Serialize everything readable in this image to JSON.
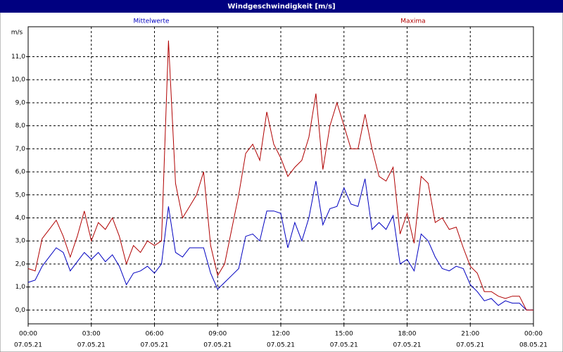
{
  "chart_data": {
    "type": "line",
    "title": "Windgeschwindigkeit [m/s]",
    "y_unit_label": "m/s",
    "x": [
      0,
      20,
      40,
      60,
      80,
      100,
      120,
      140,
      160,
      180,
      200,
      220,
      240,
      260,
      280,
      300,
      320,
      340,
      360,
      380,
      400,
      420,
      440,
      460,
      480,
      500,
      520,
      540,
      560,
      580,
      600,
      620,
      640,
      660,
      680,
      700,
      720,
      740,
      760,
      780,
      800,
      820,
      840,
      860,
      880,
      900,
      920,
      940,
      960,
      980,
      1000,
      1020,
      1040,
      1060,
      1080,
      1100,
      1120,
      1140,
      1160,
      1180,
      1200,
      1220,
      1240,
      1260,
      1280,
      1300,
      1320,
      1340,
      1360,
      1380,
      1400,
      1420,
      1440
    ],
    "series": [
      {
        "name": "Mittelwerte",
        "color": "#0000c0",
        "values": [
          1.2,
          1.3,
          1.9,
          2.3,
          2.7,
          2.5,
          1.7,
          2.1,
          2.5,
          2.2,
          2.5,
          2.1,
          2.4,
          1.9,
          1.1,
          1.6,
          1.7,
          1.9,
          1.6,
          2.0,
          4.5,
          2.5,
          2.3,
          2.7,
          2.7,
          2.7,
          1.6,
          0.9,
          1.2,
          1.5,
          1.8,
          3.2,
          3.3,
          3.0,
          4.3,
          4.3,
          4.2,
          2.7,
          3.8,
          3.0,
          4.0,
          5.6,
          3.7,
          4.4,
          4.5,
          5.3,
          4.6,
          4.5,
          5.7,
          3.5,
          3.8,
          3.5,
          4.1,
          2.0,
          2.2,
          1.7,
          3.3,
          3.0,
          2.3,
          1.8,
          1.7,
          1.9,
          1.8,
          1.1,
          0.8,
          0.4,
          0.5,
          0.2,
          0.4,
          0.3,
          0.3,
          0.0,
          0.0
        ]
      },
      {
        "name": "Maxima",
        "color": "#b00000",
        "values": [
          1.8,
          1.7,
          3.1,
          3.5,
          3.9,
          3.2,
          2.3,
          3.2,
          4.3,
          3.0,
          3.8,
          3.5,
          4.0,
          3.2,
          2.0,
          2.8,
          2.5,
          3.0,
          2.8,
          3.0,
          11.7,
          5.5,
          4.0,
          4.5,
          5.0,
          6.0,
          2.8,
          1.5,
          2.0,
          3.5,
          5.0,
          6.8,
          7.2,
          6.5,
          8.6,
          7.2,
          6.6,
          5.8,
          6.2,
          6.5,
          7.5,
          9.4,
          6.1,
          8.0,
          9.0,
          8.0,
          7.0,
          7.0,
          8.5,
          7.0,
          5.8,
          5.6,
          6.2,
          3.3,
          4.2,
          2.9,
          5.8,
          5.5,
          3.8,
          4.0,
          3.5,
          3.6,
          2.7,
          1.9,
          1.6,
          0.8,
          0.8,
          0.6,
          0.5,
          0.6,
          0.6,
          0.0,
          0.0
        ]
      }
    ],
    "xlim": [
      0,
      1440
    ],
    "xticks": [
      {
        "value": 0,
        "label": "00:00",
        "sublabel": "07.05.21"
      },
      {
        "value": 180,
        "label": "03:00",
        "sublabel": "07.05.21"
      },
      {
        "value": 360,
        "label": "06:00",
        "sublabel": "07.05.21"
      },
      {
        "value": 540,
        "label": "09:00",
        "sublabel": "07.05.21"
      },
      {
        "value": 720,
        "label": "12:00",
        "sublabel": "07.05.21"
      },
      {
        "value": 900,
        "label": "15:00",
        "sublabel": "07.05.21"
      },
      {
        "value": 1080,
        "label": "18:00",
        "sublabel": "07.05.21"
      },
      {
        "value": 1260,
        "label": "21:00",
        "sublabel": "07.05.21"
      },
      {
        "value": 1440,
        "label": "00:00",
        "sublabel": "08.05.21"
      }
    ],
    "ylim": [
      -0.6,
      12.3
    ],
    "yticks": [
      {
        "value": 0,
        "label": "0,0"
      },
      {
        "value": 1,
        "label": "1,0"
      },
      {
        "value": 2,
        "label": "2,0"
      },
      {
        "value": 3,
        "label": "3,0"
      },
      {
        "value": 4,
        "label": "4,0"
      },
      {
        "value": 5,
        "label": "5,0"
      },
      {
        "value": 6,
        "label": "6,0"
      },
      {
        "value": 7,
        "label": "7,0"
      },
      {
        "value": 8,
        "label": "8,0"
      },
      {
        "value": 9,
        "label": "9,0"
      },
      {
        "value": 10,
        "label": "10,0"
      },
      {
        "value": 11,
        "label": "11,0"
      }
    ],
    "grid": true
  }
}
